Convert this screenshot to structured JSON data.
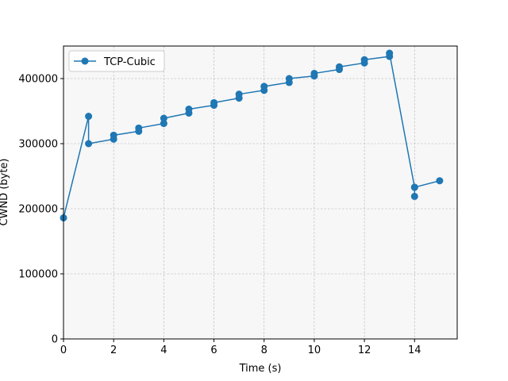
{
  "chart_data": {
    "type": "line",
    "xlabel": "Time (s)",
    "ylabel": "CWND (byte)",
    "xlim": [
      0,
      15.7
    ],
    "ylim": [
      0,
      450000
    ],
    "xticks": [
      0,
      2,
      4,
      6,
      8,
      10,
      12,
      14
    ],
    "yticks": [
      0,
      100000,
      200000,
      300000,
      400000
    ],
    "xtick_labels": [
      "0",
      "2",
      "4",
      "6",
      "8",
      "10",
      "12",
      "14"
    ],
    "ytick_labels": [
      "0",
      "100000",
      "200000",
      "300000",
      "400000"
    ],
    "grid": true,
    "legend_position": "upper-left",
    "series": [
      {
        "name": "TCP-Cubic",
        "color": "#1f77b4",
        "marker": "circle",
        "points": [
          [
            0,
            186000
          ],
          [
            1,
            342000
          ],
          [
            1,
            300000
          ],
          [
            2,
            307000
          ],
          [
            2,
            313000
          ],
          [
            3,
            319000
          ],
          [
            3,
            324000
          ],
          [
            4,
            331000
          ],
          [
            4,
            339000
          ],
          [
            5,
            347000
          ],
          [
            5,
            353000
          ],
          [
            6,
            359000
          ],
          [
            6,
            363000
          ],
          [
            7,
            370000
          ],
          [
            7,
            376000
          ],
          [
            8,
            382000
          ],
          [
            8,
            388000
          ],
          [
            9,
            394000
          ],
          [
            9,
            400000
          ],
          [
            10,
            404000
          ],
          [
            10,
            408000
          ],
          [
            11,
            414000
          ],
          [
            11,
            418000
          ],
          [
            12,
            424000
          ],
          [
            12,
            429000
          ],
          [
            13,
            434000
          ],
          [
            13,
            439000
          ],
          [
            14,
            233000
          ],
          [
            14,
            219000
          ],
          [
            14,
            233000
          ],
          [
            15,
            243000
          ]
        ]
      }
    ]
  }
}
